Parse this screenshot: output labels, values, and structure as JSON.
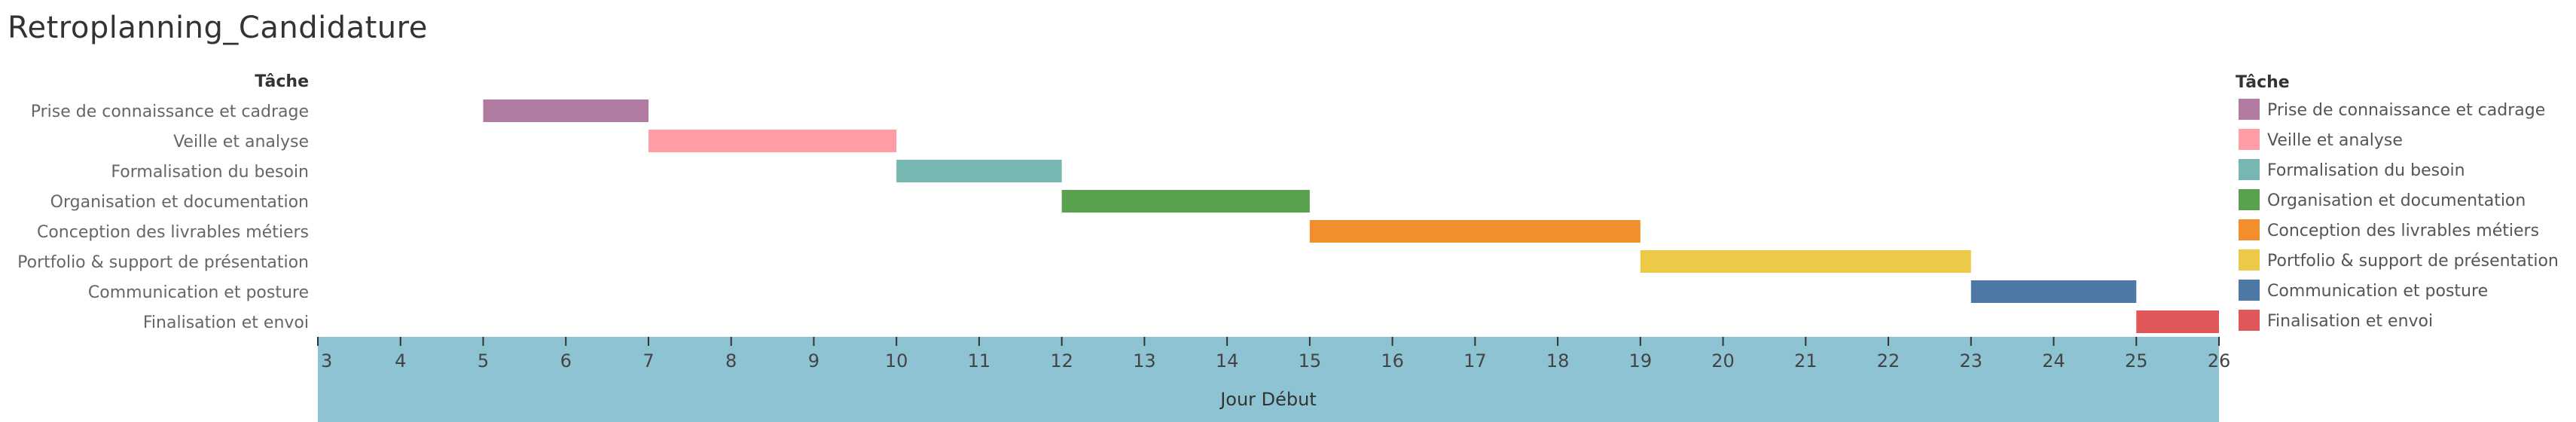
{
  "window": {
    "title": "Retroplanning_Candidature"
  },
  "chart_data": {
    "type": "gantt",
    "title": "Retroplanning_Candidature",
    "category_header": "Tâche",
    "xlabel": "Jour Début",
    "xlim": [
      3,
      26
    ],
    "x_ticks": [
      3,
      4,
      5,
      6,
      7,
      8,
      9,
      10,
      11,
      12,
      13,
      14,
      15,
      16,
      17,
      18,
      19,
      20,
      21,
      22,
      23,
      24,
      25,
      26
    ],
    "legend_title": "Tâche",
    "legend_position": "right",
    "tasks": [
      {
        "name": "Prise de connaissance et cadrage",
        "start": 5,
        "end": 7,
        "color": "#b07aa1"
      },
      {
        "name": "Veille et analyse",
        "start": 7,
        "end": 10,
        "color": "#ff9da7"
      },
      {
        "name": "Formalisation du besoin",
        "start": 10,
        "end": 12,
        "color": "#76b7b2"
      },
      {
        "name": "Organisation et documentation",
        "start": 12,
        "end": 15,
        "color": "#59a14f"
      },
      {
        "name": "Conception des livrables métiers",
        "start": 15,
        "end": 19,
        "color": "#f28e2b"
      },
      {
        "name": "Portfolio & support de présentation",
        "start": 19,
        "end": 23,
        "color": "#edc948"
      },
      {
        "name": "Communication et posture",
        "start": 23,
        "end": 25,
        "color": "#4e79a7"
      },
      {
        "name": "Finalisation et envoi",
        "start": 25,
        "end": 26,
        "color": "#e15759"
      }
    ],
    "colors": {
      "axis_band": "#8dc3d2"
    }
  }
}
